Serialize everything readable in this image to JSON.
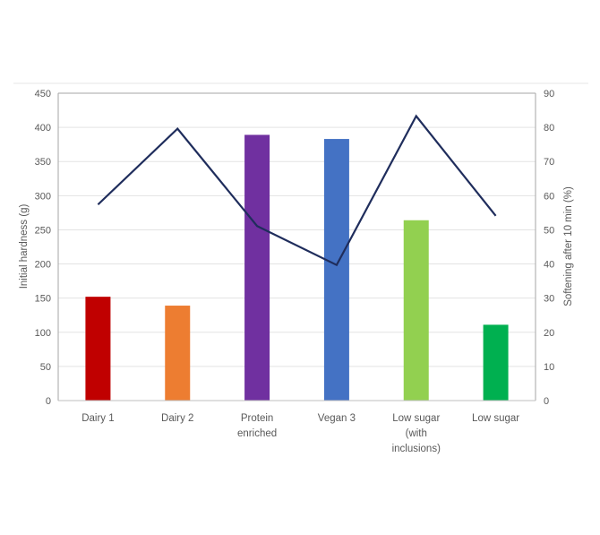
{
  "chart_data": {
    "type": "bar+line",
    "categories": [
      "Dairy 1",
      "Dairy 2",
      "Protein enriched",
      "Vegan 3",
      "Low sugar (with inclusions)",
      "Low sugar"
    ],
    "category_lines": [
      [
        "Dairy 1"
      ],
      [
        "Dairy 2"
      ],
      [
        "Protein",
        "enriched"
      ],
      [
        "Vegan 3"
      ],
      [
        "Low sugar",
        "(with",
        "inclusions)"
      ],
      [
        "Low sugar"
      ]
    ],
    "bars": {
      "axis": "left",
      "values": [
        152,
        139,
        389,
        383,
        264,
        111
      ],
      "colors": [
        "#c00000",
        "#ed7d31",
        "#7030a0",
        "#4472c4",
        "#92d050",
        "#00b050"
      ]
    },
    "line": {
      "axis": "right",
      "values": [
        57.4,
        79.6,
        51.1,
        39.7,
        83.3,
        54.1
      ],
      "color": "#1f2d5c"
    },
    "ylabel": "Initial hardness (g)",
    "y2label": "Softening  after 10 min (%)",
    "ylim": [
      0,
      450
    ],
    "y2lim": [
      0,
      90
    ],
    "yticks": [
      "0",
      "50",
      "100",
      "150",
      "200",
      "250",
      "300",
      "350",
      "400",
      "450"
    ],
    "y2ticks": [
      "0",
      "10",
      "20",
      "30",
      "40",
      "50",
      "60",
      "70",
      "80",
      "90"
    ],
    "grid": true
  }
}
